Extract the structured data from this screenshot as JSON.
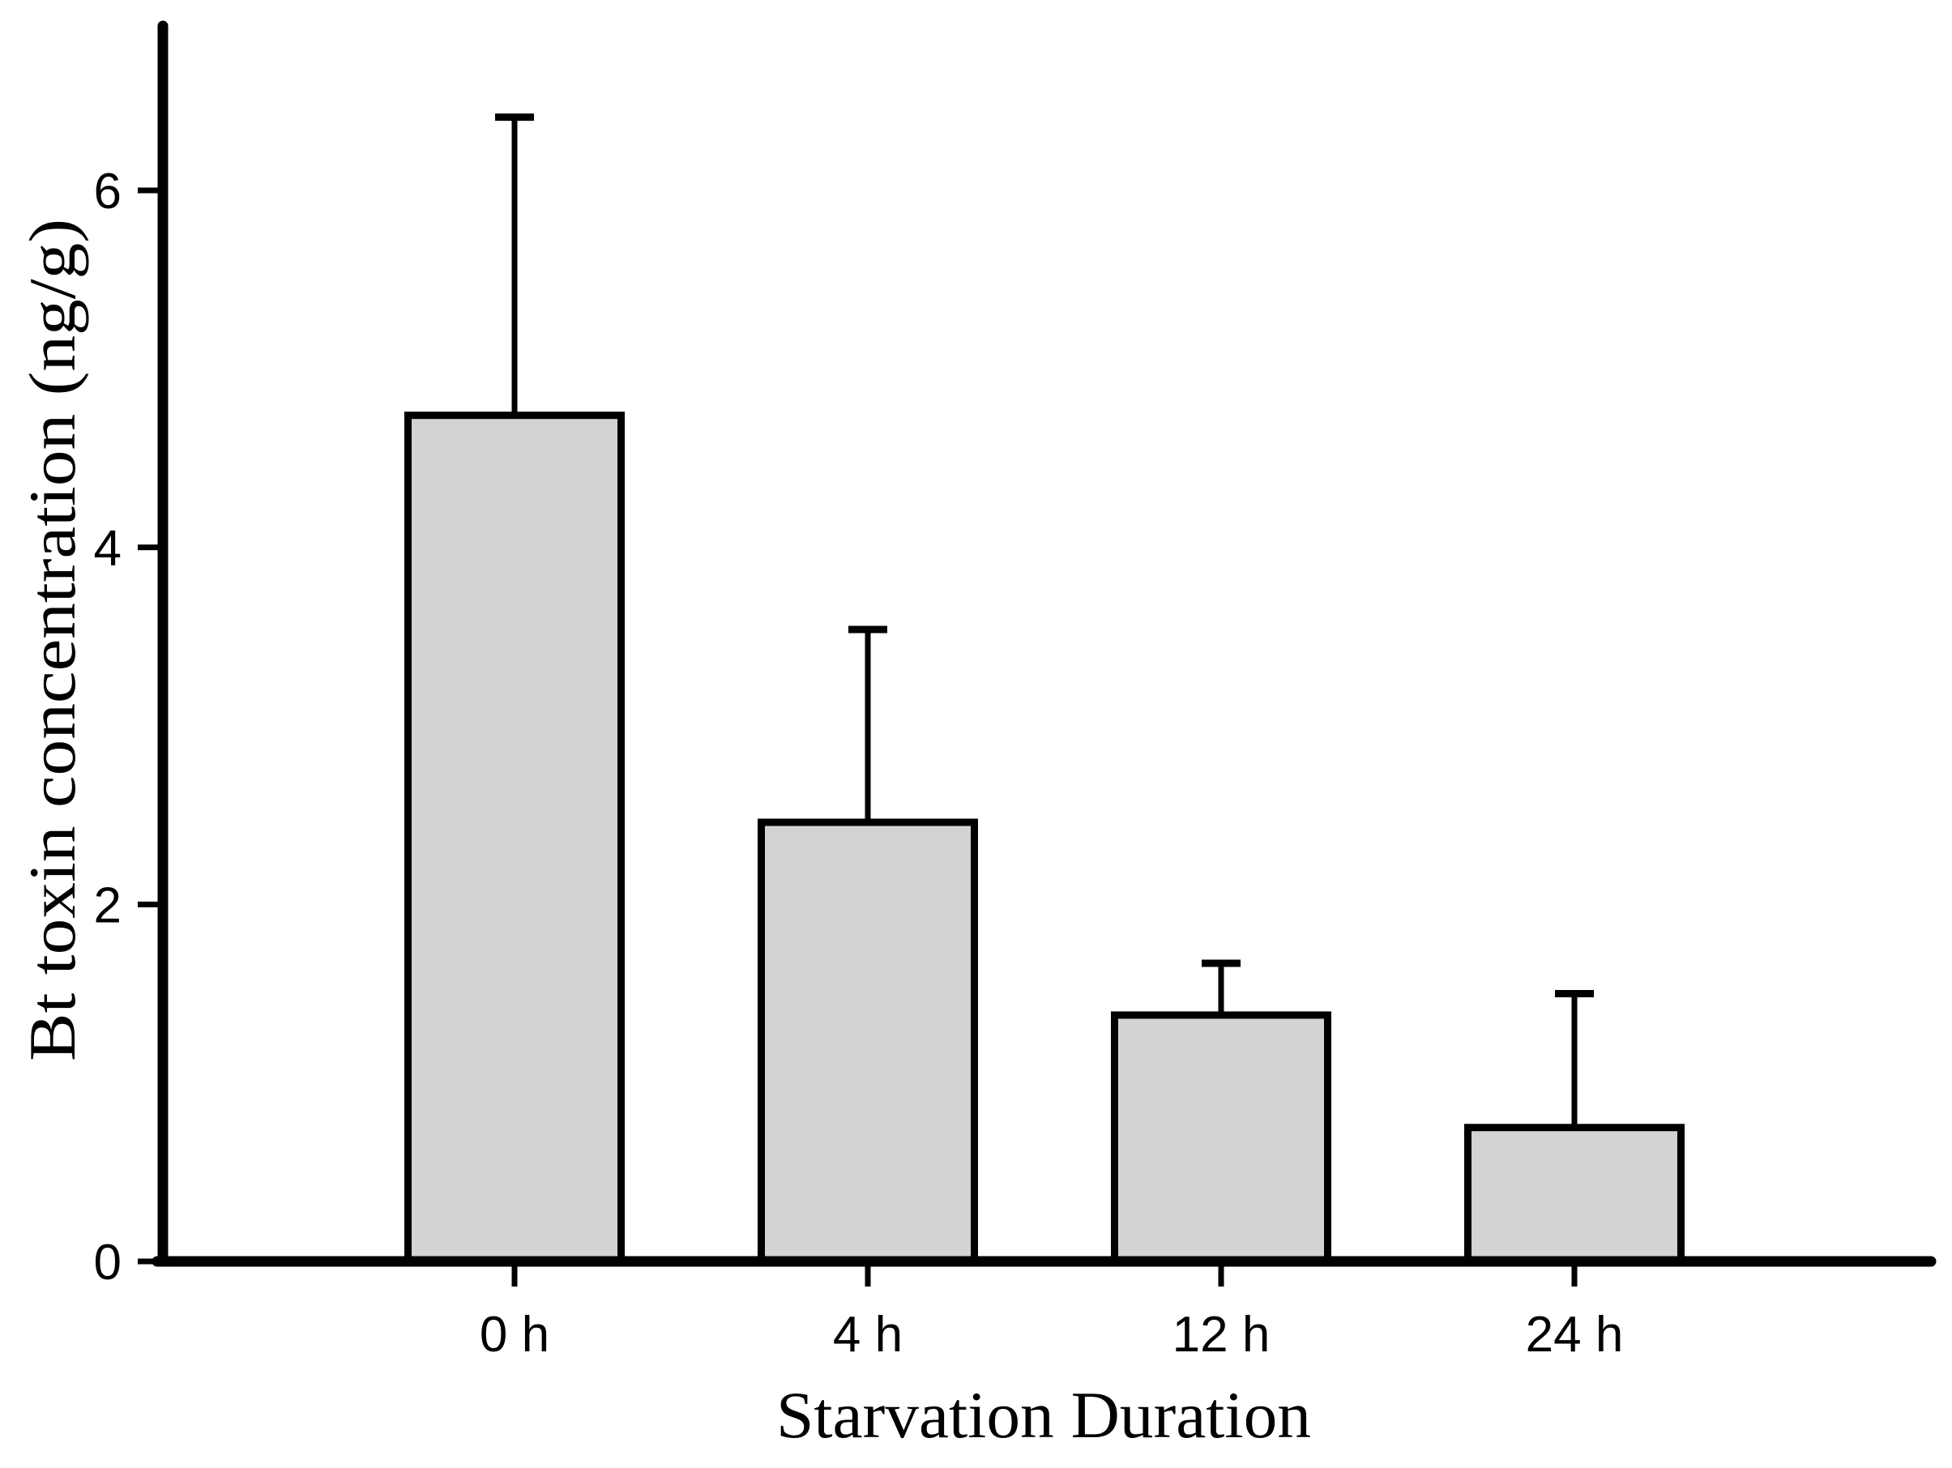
{
  "page": {
    "background": "#ffffff"
  },
  "chart_data": {
    "type": "bar",
    "categories": [
      "0 h",
      "4 h",
      "12 h",
      "24 h"
    ],
    "values": [
      4.74,
      2.46,
      1.38,
      0.75
    ],
    "errors_upper": [
      1.67,
      1.08,
      0.29,
      0.75
    ],
    "title": "",
    "xlabel": "Starvation Duration",
    "ylabel": "Bt toxin concentration (ng/g)",
    "ylim": [
      0,
      6.9
    ],
    "yticks": [
      0,
      2,
      4,
      6
    ],
    "ytick_labels": [
      "0",
      "2",
      "4",
      "6"
    ],
    "grid": false,
    "legend": "none",
    "colors": {
      "bar_fill": "#d3d3d3",
      "bar_stroke": "#000000",
      "axis": "#000000",
      "error_bar": "#000000",
      "background": "#ffffff",
      "text": "#000000"
    }
  }
}
